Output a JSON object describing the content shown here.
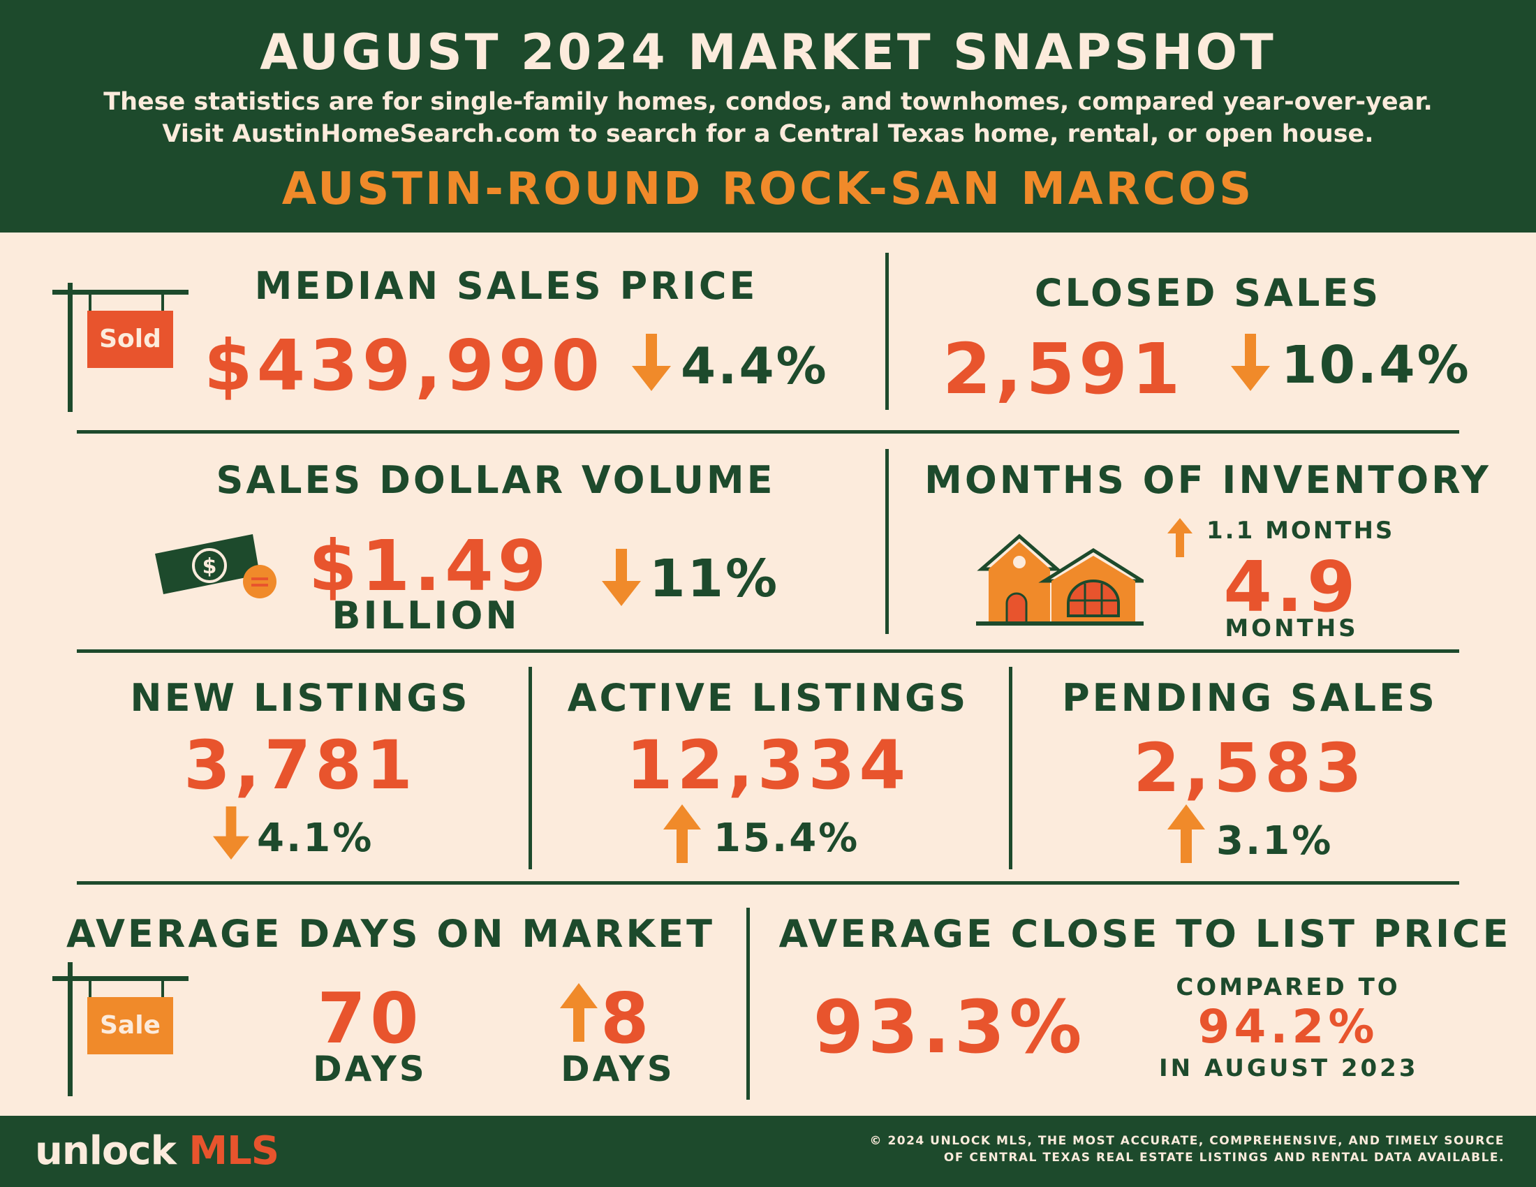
{
  "header": {
    "title": "AUGUST 2024 MARKET SNAPSHOT",
    "subtitle_1": "These statistics are for single-family homes, condos, and townhomes, compared year-over-year.",
    "subtitle_2": "Visit AustinHomeSearch.com to search for a Central Texas home, rental, or open house.",
    "region": "AUSTIN-ROUND ROCK-SAN MARCOS"
  },
  "median_sales_price": {
    "label": "MEDIAN SALES PRICE",
    "value": "$439,990",
    "direction": "down",
    "change": "4.4%",
    "sign_text": "Sold"
  },
  "closed_sales": {
    "label": "CLOSED SALES",
    "value": "2,591",
    "direction": "down",
    "change": "10.4%"
  },
  "sales_dollar_volume": {
    "label": "SALES DOLLAR VOLUME",
    "value": "$1.49",
    "unit": "BILLION",
    "direction": "down",
    "change": "11%"
  },
  "months_of_inventory": {
    "label": "MONTHS OF INVENTORY",
    "direction": "up",
    "change": "1.1 MONTHS",
    "value": "4.9",
    "unit": "MONTHS"
  },
  "new_listings": {
    "label": "NEW LISTINGS",
    "value": "3,781",
    "direction": "down",
    "change": "4.1%"
  },
  "active_listings": {
    "label": "ACTIVE LISTINGS",
    "value": "12,334",
    "direction": "up",
    "change": "15.4%"
  },
  "pending_sales": {
    "label": "PENDING SALES",
    "value": "2,583",
    "direction": "up",
    "change": "3.1%"
  },
  "average_days_on_market": {
    "label": "AVERAGE DAYS ON MARKET",
    "value": "70",
    "unit": "DAYS",
    "direction": "up",
    "change": "8",
    "change_unit": "DAYS",
    "sign_text": "Sale"
  },
  "average_close_to_list": {
    "label": "AVERAGE CLOSE TO LIST PRICE",
    "value": "93.3%",
    "compare_prefix": "COMPARED TO",
    "compare_value": "94.2%",
    "compare_suffix": "IN AUGUST 2023"
  },
  "footer": {
    "logo_word": "unlock",
    "logo_brand": "MLS",
    "copyright_1": "© 2024 UNLOCK MLS, THE MOST ACCURATE, COMPREHENSIVE, AND TIMELY SOURCE",
    "copyright_2": "OF CENTRAL TEXAS REAL ESTATE LISTINGS AND RENTAL DATA AVAILABLE."
  },
  "colors": {
    "background": "#fcebdc",
    "green": "#1d4a2c",
    "red_orange": "#e8542d",
    "orange": "#f08a2a"
  }
}
